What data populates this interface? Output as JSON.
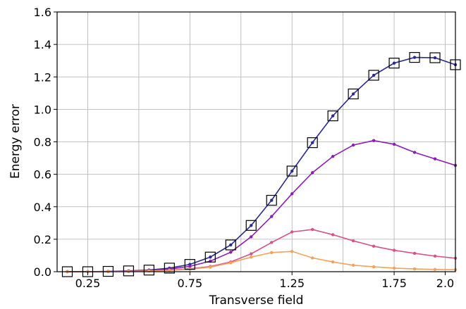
{
  "chart_data": {
    "type": "line",
    "title": "",
    "xlabel": "Transverse field",
    "ylabel": "Energy error",
    "xlim": [
      0.1,
      2.05
    ],
    "ylim": [
      0.0,
      1.6
    ],
    "grid": true,
    "legend": "none",
    "x_ticks": [
      0.25,
      0.75,
      1.25,
      1.75,
      2.0
    ],
    "x_tick_labels": [
      "0.25",
      "0.75",
      "1.25",
      "1.75",
      "2.0"
    ],
    "x_gridlines": [
      0.25,
      0.5,
      0.75,
      1.0,
      1.25,
      1.5,
      1.75,
      2.0
    ],
    "y_ticks": [
      0.0,
      0.2,
      0.4,
      0.6,
      0.8,
      1.0,
      1.2,
      1.4,
      1.6
    ],
    "y_tick_labels": [
      "0.0",
      "0.2",
      "0.4",
      "0.6",
      "0.8",
      "1.0",
      "1.2",
      "1.4",
      "1.6"
    ],
    "series": [
      {
        "color": "#2b2a8e",
        "marker": "dot",
        "x": [
          0.15,
          0.25,
          0.35,
          0.45,
          0.55,
          0.65,
          0.75,
          0.85,
          0.95,
          1.05,
          1.15,
          1.25,
          1.35,
          1.45,
          1.55,
          1.65,
          1.75,
          1.85,
          1.95,
          2.05
        ],
        "values": [
          0.0,
          0.0,
          0.002,
          0.005,
          0.01,
          0.022,
          0.045,
          0.09,
          0.165,
          0.285,
          0.44,
          0.62,
          0.795,
          0.96,
          1.095,
          1.21,
          1.285,
          1.32,
          1.318,
          1.275
        ]
      },
      {
        "color": "#8b1fb5",
        "marker": "dot",
        "x": [
          0.15,
          0.25,
          0.35,
          0.45,
          0.55,
          0.65,
          0.75,
          0.85,
          0.95,
          1.05,
          1.15,
          1.25,
          1.35,
          1.45,
          1.55,
          1.65,
          1.75,
          1.85,
          1.95,
          2.05
        ],
        "values": [
          0.0,
          0.0,
          0.001,
          0.003,
          0.007,
          0.016,
          0.033,
          0.065,
          0.12,
          0.215,
          0.34,
          0.48,
          0.61,
          0.71,
          0.78,
          0.808,
          0.785,
          0.735,
          0.695,
          0.655
        ]
      },
      {
        "color": "#d4548a",
        "marker": "dot",
        "x": [
          0.15,
          0.25,
          0.35,
          0.45,
          0.55,
          0.65,
          0.75,
          0.85,
          0.95,
          1.05,
          1.15,
          1.25,
          1.35,
          1.45,
          1.55,
          1.65,
          1.75,
          1.85,
          1.95,
          2.05
        ],
        "values": [
          0.0,
          0.0,
          0.001,
          0.002,
          0.005,
          0.01,
          0.018,
          0.032,
          0.06,
          0.11,
          0.18,
          0.245,
          0.26,
          0.228,
          0.19,
          0.157,
          0.132,
          0.113,
          0.096,
          0.083
        ]
      },
      {
        "color": "#f5a15a",
        "marker": "dot",
        "x": [
          0.15,
          0.25,
          0.35,
          0.45,
          0.55,
          0.65,
          0.75,
          0.85,
          0.95,
          1.05,
          1.15,
          1.25,
          1.35,
          1.45,
          1.55,
          1.65,
          1.75,
          1.85,
          1.95,
          2.05
        ],
        "values": [
          0.0,
          0.0,
          0.001,
          0.002,
          0.004,
          0.008,
          0.015,
          0.028,
          0.055,
          0.09,
          0.118,
          0.125,
          0.085,
          0.06,
          0.04,
          0.03,
          0.022,
          0.017,
          0.014,
          0.012
        ]
      },
      {
        "color": "#000000",
        "marker": "open-square",
        "x": [
          0.15,
          0.25,
          0.35,
          0.45,
          0.55,
          0.65,
          0.75,
          0.85,
          0.95,
          1.05,
          1.15,
          1.25,
          1.35,
          1.45,
          1.55,
          1.65,
          1.75,
          1.85,
          1.95,
          2.05
        ],
        "values": [
          0.0,
          0.0,
          0.002,
          0.005,
          0.01,
          0.022,
          0.045,
          0.09,
          0.165,
          0.285,
          0.44,
          0.62,
          0.795,
          0.96,
          1.095,
          1.21,
          1.285,
          1.32,
          1.318,
          1.275
        ]
      }
    ]
  }
}
